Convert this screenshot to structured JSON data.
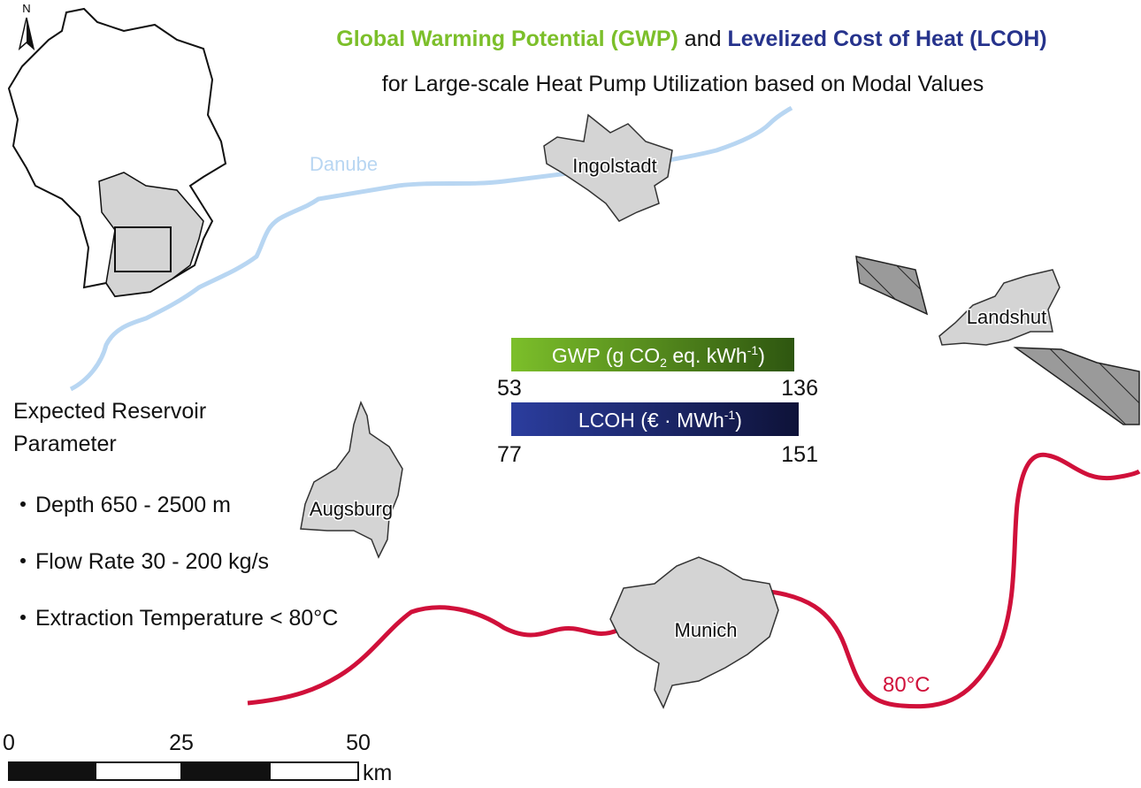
{
  "title": {
    "gwp": "Global Warming Potential (GWP)",
    "and": "and",
    "lcoh": "Levelized Cost of Heat (LCOH)",
    "subtitle": "for Large-scale Heat Pump Utilization based on Modal Values"
  },
  "north": "N",
  "places": {
    "river": "Danube",
    "ingolstadt": "Ingolstadt",
    "landshut": "Landshut",
    "augsburg": "Augsburg",
    "munich": "Munich",
    "isotherm": "80°C"
  },
  "legend": {
    "gwp": {
      "label": [
        "GWP (g CO",
        "2",
        " eq. kWh",
        "-1",
        ")"
      ],
      "min": 53,
      "max": 136
    },
    "lcoh": {
      "label": [
        "LCOH (€ · MWh",
        "-1",
        ")"
      ],
      "min": 77,
      "max": 151
    }
  },
  "reservoir": {
    "heading": [
      "Expected Reservoir",
      "Parameter"
    ],
    "items": [
      "Depth 650 - 2500 m",
      "Flow Rate 30 - 200 kg/s",
      "Extraction Temperature < 80°C"
    ]
  },
  "scale": {
    "ticks": [
      0,
      25,
      50
    ],
    "unit": "km"
  }
}
